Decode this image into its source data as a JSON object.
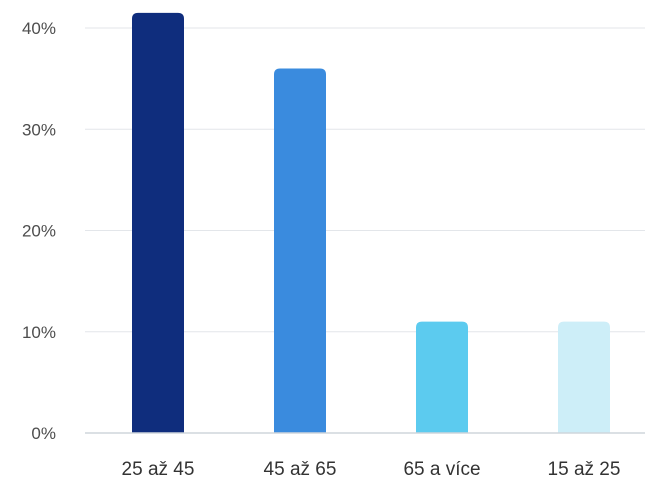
{
  "chart_data": {
    "type": "bar",
    "title": "",
    "xlabel": "",
    "ylabel": "",
    "categories": [
      "25 až 45",
      "45 až 65",
      "65 a více",
      "15 až 25"
    ],
    "values": [
      41.5,
      36,
      11,
      11
    ],
    "ylim": [
      0,
      40
    ],
    "y_ticks": [
      0,
      10,
      20,
      30,
      40
    ],
    "y_tick_labels": [
      "0%",
      "10%",
      "20%",
      "30%",
      "40%"
    ],
    "grid": true,
    "legend": "none",
    "colors": [
      "#0f2d7d",
      "#3a8bde",
      "#5ccbef",
      "#cdeef8"
    ],
    "grid_color": "#e3e6ea",
    "axis_color": "#cfd5dc"
  }
}
